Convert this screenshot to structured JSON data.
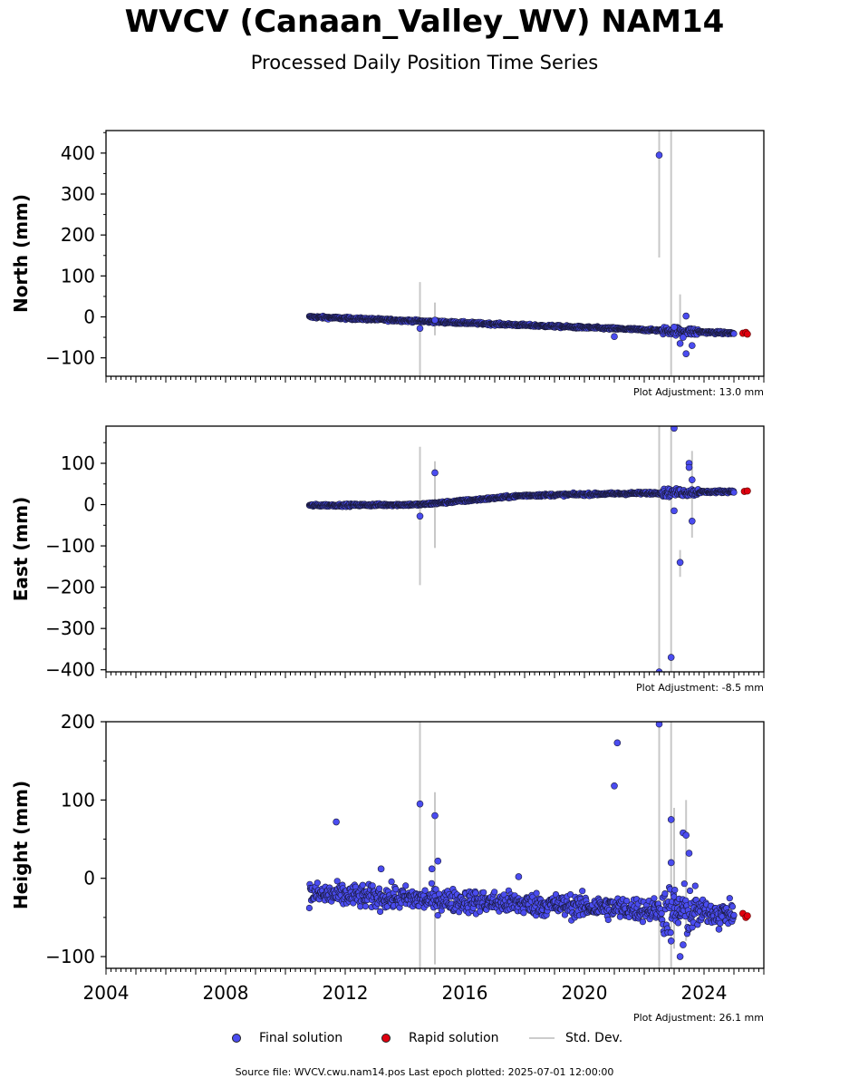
{
  "header": {
    "title": "WVCV (Canaan_Valley_WV) NAM14",
    "subtitle": "Processed Daily Position Time Series"
  },
  "legend": {
    "final": "Final solution",
    "rapid": "Rapid solution",
    "std": "Std. Dev."
  },
  "footer": "Source file: WVCV.cwu.nam14.pos  Last epoch plotted: 2025-07-01 12:00:00",
  "colors": {
    "final": "#4a4cf0",
    "rapid": "#e0000f",
    "std": "#c8c8c8",
    "edge": "#1a1a3a"
  },
  "chart_data": [
    {
      "type": "scatter",
      "ylabel": "North (mm)",
      "adjustment": "Plot Adjustment: 13.0 mm",
      "xlim": [
        2004,
        2026
      ],
      "ylim": [
        -145,
        455
      ],
      "yticks": [
        400,
        300,
        200,
        100,
        0,
        -100
      ],
      "ytick_labels": [
        "400",
        "300",
        "200",
        "100",
        "0",
        "−100"
      ],
      "trend": [
        [
          2010.8,
          0
        ],
        [
          2025.0,
          -40
        ]
      ],
      "noise": 3,
      "outliers": [
        [
          2014.5,
          -28
        ],
        [
          2015.0,
          -8
        ],
        [
          2021.0,
          -48
        ],
        [
          2022.5,
          395
        ],
        [
          2023.0,
          -25
        ],
        [
          2023.2,
          -65
        ],
        [
          2023.3,
          -50
        ],
        [
          2023.4,
          -90
        ],
        [
          2023.4,
          2
        ],
        [
          2023.6,
          -70
        ]
      ],
      "errorbars": [
        [
          2014.5,
          -145,
          85
        ],
        [
          2015.0,
          -45,
          35
        ],
        [
          2022.5,
          145,
          455
        ],
        [
          2022.9,
          -145,
          455
        ],
        [
          2023.2,
          -60,
          55
        ]
      ],
      "rapid": [
        [
          2025.3,
          -40
        ],
        [
          2025.4,
          -38
        ],
        [
          2025.45,
          -42
        ]
      ]
    },
    {
      "type": "scatter",
      "ylabel": "East (mm)",
      "adjustment": "Plot Adjustment: -8.5 mm",
      "xlim": [
        2004,
        2026
      ],
      "ylim": [
        -405,
        190
      ],
      "yticks": [
        100,
        0,
        -100,
        -200,
        -300,
        -400
      ],
      "ytick_labels": [
        "100",
        "0",
        "−100",
        "−200",
        "−300",
        "−400"
      ],
      "trend": [
        [
          2010.8,
          -2
        ],
        [
          2014.5,
          0
        ],
        [
          2018.0,
          22
        ],
        [
          2025.0,
          32
        ]
      ],
      "noise": 3,
      "outliers": [
        [
          2014.5,
          -28
        ],
        [
          2015.0,
          77
        ],
        [
          2022.5,
          -405
        ],
        [
          2022.9,
          -370
        ],
        [
          2023.0,
          185
        ],
        [
          2023.0,
          -15
        ],
        [
          2023.2,
          -140
        ],
        [
          2023.5,
          100
        ],
        [
          2023.5,
          90
        ],
        [
          2023.6,
          -40
        ],
        [
          2023.6,
          60
        ]
      ],
      "errorbars": [
        [
          2014.5,
          -195,
          140
        ],
        [
          2015.0,
          -105,
          105
        ],
        [
          2022.5,
          -405,
          190
        ],
        [
          2022.9,
          -405,
          190
        ],
        [
          2023.2,
          -175,
          -110
        ],
        [
          2023.6,
          -80,
          130
        ]
      ],
      "rapid": [
        [
          2025.35,
          32
        ],
        [
          2025.45,
          33
        ]
      ]
    },
    {
      "type": "scatter",
      "ylabel": "Height (mm)",
      "adjustment": "Plot Adjustment: 26.1 mm",
      "xlim": [
        2004,
        2026
      ],
      "ylim": [
        -115,
        200
      ],
      "yticks": [
        200,
        100,
        0,
        -100
      ],
      "ytick_labels": [
        "200",
        "100",
        "0",
        "−100"
      ],
      "xticks": [
        2004,
        2008,
        2012,
        2016,
        2020,
        2024
      ],
      "trend": [
        [
          2010.8,
          -20
        ],
        [
          2025.0,
          -45
        ]
      ],
      "noise": 14,
      "outliers": [
        [
          2011.7,
          72
        ],
        [
          2013.2,
          12
        ],
        [
          2014.5,
          95
        ],
        [
          2014.9,
          12
        ],
        [
          2015.0,
          80
        ],
        [
          2015.1,
          22
        ],
        [
          2017.8,
          2
        ],
        [
          2021.0,
          118
        ],
        [
          2021.1,
          173
        ],
        [
          2022.5,
          197
        ],
        [
          2022.9,
          75
        ],
        [
          2022.9,
          20
        ],
        [
          2023.3,
          58
        ],
        [
          2023.4,
          55
        ],
        [
          2023.3,
          -85
        ],
        [
          2023.2,
          -100
        ],
        [
          2023.5,
          32
        ],
        [
          2022.9,
          -80
        ],
        [
          2024.5,
          -65
        ]
      ],
      "errorbars": [
        [
          2014.5,
          -115,
          200
        ],
        [
          2015.0,
          -110,
          110
        ],
        [
          2022.5,
          -115,
          200
        ],
        [
          2022.9,
          -115,
          200
        ],
        [
          2023.4,
          -80,
          100
        ],
        [
          2023.0,
          -90,
          90
        ]
      ],
      "rapid": [
        [
          2025.3,
          -45
        ],
        [
          2025.4,
          -50
        ],
        [
          2025.45,
          -48
        ]
      ]
    }
  ]
}
